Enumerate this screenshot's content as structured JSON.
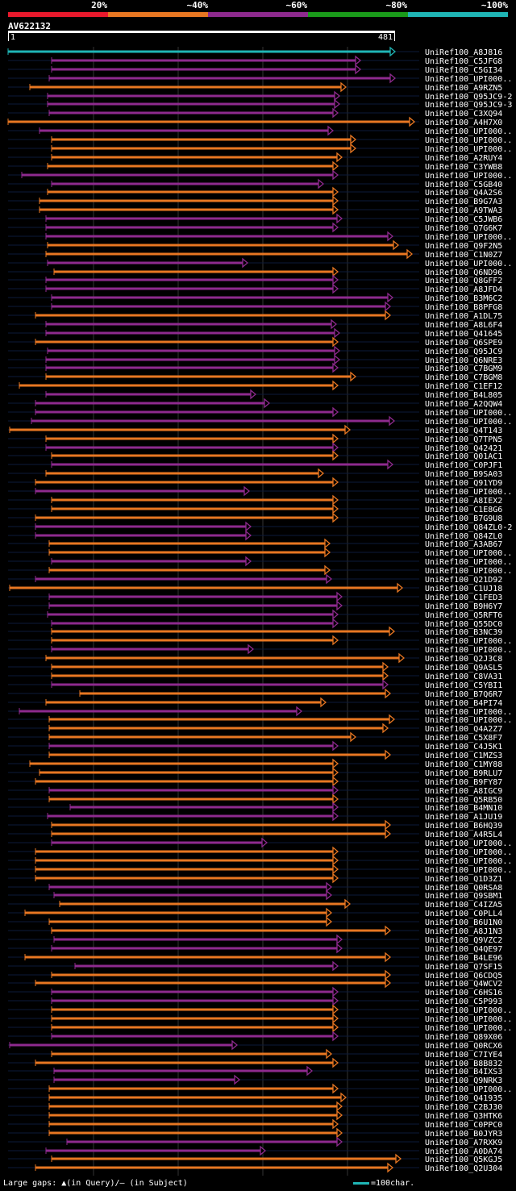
{
  "legend": {
    "items": [
      {
        "label": "20%",
        "color": "#e8192c"
      },
      {
        "label": "~40%",
        "color": "#e87722"
      },
      {
        "label": "~60%",
        "color": "#8e2a8e"
      },
      {
        "label": "~80%",
        "color": "#1a9a1a"
      },
      {
        "label": "~100%",
        "color": "#1fb5b5"
      }
    ]
  },
  "query": {
    "name": "AV622132",
    "start": "1",
    "end": "481"
  },
  "colors": {
    "orange": "#e87722",
    "purple": "#8e2a8e",
    "teal": "#1fb5b5",
    "insert": "#ffe680",
    "grid": "#333333"
  },
  "hits": [
    {
      "name": "UniRef100_A8J816",
      "start": 1,
      "end": 481,
      "color": "teal"
    },
    {
      "name": "UniRef100_C5JFG8",
      "start": 55,
      "end": 438,
      "color": "purple"
    },
    {
      "name": "UniRef100_C5GI34",
      "start": 55,
      "end": 438,
      "color": "purple"
    },
    {
      "name": "UniRef100_UPI000..",
      "start": 52,
      "end": 481,
      "color": "purple"
    },
    {
      "name": "UniRef100_A9RZN5",
      "start": 28,
      "end": 420,
      "color": "orange"
    },
    {
      "name": "UniRef100_Q95JC9-2",
      "start": 50,
      "end": 412,
      "color": "purple"
    },
    {
      "name": "UniRef100_Q95JC9-3",
      "start": 50,
      "end": 412,
      "color": "purple"
    },
    {
      "name": "UniRef100_C3XQ94",
      "start": 52,
      "end": 410,
      "color": "purple"
    },
    {
      "name": "UniRef100_A4H7X0",
      "start": 1,
      "end": 505,
      "color": "orange"
    },
    {
      "name": "UniRef100_UPI000..",
      "start": 40,
      "end": 404,
      "color": "purple"
    },
    {
      "name": "UniRef100_UPI000..",
      "start": 55,
      "end": 432,
      "color": "orange"
    },
    {
      "name": "UniRef100_UPI000..",
      "start": 55,
      "end": 432,
      "color": "orange"
    },
    {
      "name": "UniRef100_A2RUY4",
      "start": 55,
      "end": 415,
      "color": "orange"
    },
    {
      "name": "UniRef100_C3YWB8",
      "start": 50,
      "end": 410,
      "color": "orange"
    },
    {
      "name": "UniRef100_UPI000..",
      "start": 18,
      "end": 410,
      "color": "purple"
    },
    {
      "name": "UniRef100_C5GB40",
      "start": 55,
      "end": 392,
      "color": "purple"
    },
    {
      "name": "UniRef100_Q4A2S6",
      "start": 50,
      "end": 410,
      "color": "orange"
    },
    {
      "name": "UniRef100_B9G7A3",
      "start": 40,
      "end": 410,
      "color": "orange"
    },
    {
      "name": "UniRef100_A9TWA3",
      "start": 40,
      "end": 410,
      "color": "orange"
    },
    {
      "name": "UniRef100_C5JWB6",
      "start": 48,
      "end": 415,
      "color": "purple"
    },
    {
      "name": "UniRef100_Q7G6K7",
      "start": 48,
      "end": 410,
      "color": "purple"
    },
    {
      "name": "UniRef100_UPI000..",
      "start": 48,
      "end": 478,
      "color": "purple"
    },
    {
      "name": "UniRef100_Q9F2N5",
      "start": 50,
      "end": 485,
      "color": "orange"
    },
    {
      "name": "UniRef100_C1N0Z7",
      "start": 48,
      "end": 502,
      "color": "orange"
    },
    {
      "name": "UniRef100_UPI000..",
      "start": 50,
      "end": 298,
      "color": "purple"
    },
    {
      "name": "UniRef100_Q6ND96",
      "start": 58,
      "end": 410,
      "color": "orange"
    },
    {
      "name": "UniRef100_Q8GFF2",
      "start": 48,
      "end": 410,
      "color": "purple"
    },
    {
      "name": "UniRef100_A8JFD4",
      "start": 48,
      "end": 410,
      "color": "purple"
    },
    {
      "name": "UniRef100_B3M6C2",
      "start": 55,
      "end": 478,
      "color": "purple"
    },
    {
      "name": "UniRef100_B8PFG8",
      "start": 55,
      "end": 475,
      "color": "purple"
    },
    {
      "name": "UniRef100_A1DL75",
      "start": 35,
      "end": 475,
      "color": "orange"
    },
    {
      "name": "UniRef100_A8L6F4",
      "start": 48,
      "end": 408,
      "color": "purple"
    },
    {
      "name": "UniRef100_Q41645",
      "start": 48,
      "end": 412,
      "color": "purple"
    },
    {
      "name": "UniRef100_Q6SPE9",
      "start": 35,
      "end": 410,
      "color": "orange"
    },
    {
      "name": "UniRef100_Q95JC9",
      "start": 50,
      "end": 412,
      "color": "purple"
    },
    {
      "name": "UniRef100_Q6NRE3",
      "start": 48,
      "end": 412,
      "color": "purple"
    },
    {
      "name": "UniRef100_C7BGM9",
      "start": 48,
      "end": 410,
      "color": "purple"
    },
    {
      "name": "UniRef100_C7BGM8",
      "start": 48,
      "end": 432,
      "color": "orange"
    },
    {
      "name": "UniRef100_C1EF12",
      "start": 15,
      "end": 410,
      "color": "orange"
    },
    {
      "name": "UniRef100_B4L805",
      "start": 48,
      "end": 308,
      "color": "purple"
    },
    {
      "name": "UniRef100_A2QQW4",
      "start": 35,
      "end": 325,
      "color": "purple"
    },
    {
      "name": "UniRef100_UPI000..",
      "start": 35,
      "end": 410,
      "color": "purple"
    },
    {
      "name": "UniRef100_UPI000..",
      "start": 30,
      "end": 480,
      "color": "purple"
    },
    {
      "name": "UniRef100_Q4T143",
      "start": 3,
      "end": 425,
      "color": "orange"
    },
    {
      "name": "UniRef100_Q7TPN5",
      "start": 48,
      "end": 410,
      "color": "orange"
    },
    {
      "name": "UniRef100_Q42421",
      "start": 48,
      "end": 410,
      "color": "purple"
    },
    {
      "name": "UniRef100_Q01AC1",
      "start": 55,
      "end": 410,
      "color": "orange"
    },
    {
      "name": "UniRef100_C0PJF1",
      "start": 55,
      "end": 478,
      "color": "purple"
    },
    {
      "name": "UniRef100_B9SA03",
      "start": 48,
      "end": 392,
      "color": "orange"
    },
    {
      "name": "UniRef100_Q91YD9",
      "start": 35,
      "end": 410,
      "color": "orange"
    },
    {
      "name": "UniRef100_UPI000..",
      "start": 35,
      "end": 300,
      "color": "purple"
    },
    {
      "name": "UniRef100_A8IEX2",
      "start": 55,
      "end": 410,
      "color": "orange"
    },
    {
      "name": "UniRef100_C1E8G6",
      "start": 55,
      "end": 410,
      "color": "orange"
    },
    {
      "name": "UniRef100_B7G9U8",
      "start": 35,
      "end": 410,
      "color": "orange"
    },
    {
      "name": "UniRef100_Q84ZL0-2",
      "start": 35,
      "end": 302,
      "color": "purple"
    },
    {
      "name": "UniRef100_Q84ZL0",
      "start": 35,
      "end": 302,
      "color": "purple"
    },
    {
      "name": "UniRef100_A3AB67",
      "start": 52,
      "end": 400,
      "color": "orange"
    },
    {
      "name": "UniRef100_UPI000..",
      "start": 52,
      "end": 400,
      "color": "orange"
    },
    {
      "name": "UniRef100_UPI000..",
      "start": 55,
      "end": 302,
      "color": "purple"
    },
    {
      "name": "UniRef100_UPI000..",
      "start": 52,
      "end": 400,
      "color": "orange"
    },
    {
      "name": "UniRef100_Q21D92",
      "start": 35,
      "end": 402,
      "color": "purple"
    },
    {
      "name": "UniRef100_C1UJ18",
      "start": 3,
      "end": 490,
      "color": "orange"
    },
    {
      "name": "UniRef100_C1FED3",
      "start": 52,
      "end": 415,
      "color": "purple"
    },
    {
      "name": "UniRef100_B9H6Y7",
      "start": 52,
      "end": 415,
      "color": "purple"
    },
    {
      "name": "UniRef100_Q5RFT6",
      "start": 50,
      "end": 410,
      "color": "purple"
    },
    {
      "name": "UniRef100_Q55DC0",
      "start": 55,
      "end": 410,
      "color": "purple"
    },
    {
      "name": "UniRef100_B3NC39",
      "start": 55,
      "end": 480,
      "color": "orange"
    },
    {
      "name": "UniRef100_UPI000..",
      "start": 55,
      "end": 410,
      "color": "orange"
    },
    {
      "name": "UniRef100_UPI000..",
      "start": 55,
      "end": 305,
      "color": "purple"
    },
    {
      "name": "UniRef100_Q2J3C8",
      "start": 48,
      "end": 492,
      "color": "orange"
    },
    {
      "name": "UniRef100_Q9ASL5",
      "start": 55,
      "end": 472,
      "color": "orange"
    },
    {
      "name": "UniRef100_C8VA31",
      "start": 55,
      "end": 472,
      "color": "orange"
    },
    {
      "name": "UniRef100_C5YBI1",
      "start": 55,
      "end": 472,
      "color": "purple"
    },
    {
      "name": "UniRef100_B7Q6R7",
      "start": 90,
      "end": 475,
      "color": "orange"
    },
    {
      "name": "UniRef100_B4PI74",
      "start": 48,
      "end": 395,
      "color": "orange"
    },
    {
      "name": "UniRef100_UPI000..",
      "start": 15,
      "end": 365,
      "color": "purple"
    },
    {
      "name": "UniRef100_UPI000..",
      "start": 52,
      "end": 480,
      "color": "orange"
    },
    {
      "name": "UniRef100_Q4A2Z7",
      "start": 52,
      "end": 472,
      "color": "orange"
    },
    {
      "name": "UniRef100_C5X8F7",
      "start": 52,
      "end": 432,
      "color": "orange"
    },
    {
      "name": "UniRef100_C4J5K1",
      "start": 52,
      "end": 410,
      "color": "purple"
    },
    {
      "name": "UniRef100_C1MZS3",
      "start": 52,
      "end": 475,
      "color": "orange"
    },
    {
      "name": "UniRef100_C1MY88",
      "start": 28,
      "end": 410,
      "color": "orange"
    },
    {
      "name": "UniRef100_B9RLU7",
      "start": 40,
      "end": 410,
      "color": "orange"
    },
    {
      "name": "UniRef100_B9FY87",
      "start": 35,
      "end": 410,
      "color": "orange"
    },
    {
      "name": "UniRef100_A8IGC9",
      "start": 52,
      "end": 410,
      "color": "purple"
    },
    {
      "name": "UniRef100_Q5RB50",
      "start": 52,
      "end": 410,
      "color": "orange"
    },
    {
      "name": "UniRef100_B4MN10",
      "start": 78,
      "end": 410,
      "color": "purple"
    },
    {
      "name": "UniRef100_A1JU19",
      "start": 50,
      "end": 410,
      "color": "purple"
    },
    {
      "name": "UniRef100_B6HQ39",
      "start": 55,
      "end": 475,
      "color": "orange"
    },
    {
      "name": "UniRef100_A4R5L4",
      "start": 55,
      "end": 475,
      "color": "orange"
    },
    {
      "name": "UniRef100_UPI000..",
      "start": 55,
      "end": 322,
      "color": "purple"
    },
    {
      "name": "UniRef100_UPI000..",
      "start": 35,
      "end": 410,
      "color": "orange"
    },
    {
      "name": "UniRef100_UPI000..",
      "start": 35,
      "end": 410,
      "color": "orange"
    },
    {
      "name": "UniRef100_UPI000..",
      "start": 35,
      "end": 410,
      "color": "orange"
    },
    {
      "name": "UniRef100_Q1D3Z1",
      "start": 35,
      "end": 410,
      "color": "orange"
    },
    {
      "name": "UniRef100_Q0RSA8",
      "start": 52,
      "end": 402,
      "color": "purple"
    },
    {
      "name": "UniRef100_Q9SBM1",
      "start": 58,
      "end": 402,
      "color": "purple"
    },
    {
      "name": "UniRef100_C4IZA5",
      "start": 65,
      "end": 425,
      "color": "orange"
    },
    {
      "name": "UniRef100_C0PLL4",
      "start": 22,
      "end": 402,
      "color": "orange"
    },
    {
      "name": "UniRef100_B6U1N0",
      "start": 52,
      "end": 402,
      "color": "orange"
    },
    {
      "name": "UniRef100_A8J1N3",
      "start": 55,
      "end": 475,
      "color": "orange"
    },
    {
      "name": "UniRef100_Q9VZC2",
      "start": 58,
      "end": 415,
      "color": "purple"
    },
    {
      "name": "UniRef100_Q4QE97",
      "start": 55,
      "end": 415,
      "color": "purple"
    },
    {
      "name": "UniRef100_B4LE96",
      "start": 22,
      "end": 475,
      "color": "orange"
    },
    {
      "name": "UniRef100_Q7SF15",
      "start": 84,
      "end": 410,
      "color": "purple"
    },
    {
      "name": "UniRef100_Q6CDQ5",
      "start": 55,
      "end": 475,
      "color": "orange"
    },
    {
      "name": "UniRef100_Q4WCV2",
      "start": 35,
      "end": 475,
      "color": "orange"
    },
    {
      "name": "UniRef100_C6HS16",
      "start": 55,
      "end": 410,
      "color": "purple"
    },
    {
      "name": "UniRef100_C5P993",
      "start": 55,
      "end": 410,
      "color": "purple"
    },
    {
      "name": "UniRef100_UPI000..",
      "start": 55,
      "end": 410,
      "color": "orange"
    },
    {
      "name": "UniRef100_UPI000..",
      "start": 55,
      "end": 410,
      "color": "orange"
    },
    {
      "name": "UniRef100_UPI000..",
      "start": 55,
      "end": 410,
      "color": "orange"
    },
    {
      "name": "UniRef100_Q89X06",
      "start": 55,
      "end": 410,
      "color": "purple"
    },
    {
      "name": "UniRef100_Q0RCX6",
      "start": 3,
      "end": 285,
      "color": "purple"
    },
    {
      "name": "UniRef100_C7IYE4",
      "start": 55,
      "end": 402,
      "color": "orange"
    },
    {
      "name": "UniRef100_B8B832",
      "start": 35,
      "end": 410,
      "color": "orange"
    },
    {
      "name": "UniRef100_B4IXS3",
      "start": 58,
      "end": 378,
      "color": "purple"
    },
    {
      "name": "UniRef100_Q9NRK3",
      "start": 58,
      "end": 288,
      "color": "purple"
    },
    {
      "name": "UniRef100_UPI000..",
      "start": 52,
      "end": 410,
      "color": "orange"
    },
    {
      "name": "UniRef100_Q41935",
      "start": 52,
      "end": 420,
      "color": "orange"
    },
    {
      "name": "UniRef100_C2BJ30",
      "start": 52,
      "end": 415,
      "color": "orange"
    },
    {
      "name": "UniRef100_Q3HTK6",
      "start": 52,
      "end": 415,
      "color": "orange"
    },
    {
      "name": "UniRef100_C0PPC0",
      "start": 52,
      "end": 410,
      "color": "orange"
    },
    {
      "name": "UniRef100_B0JYR3",
      "start": 52,
      "end": 415,
      "color": "orange"
    },
    {
      "name": "UniRef100_A7RXK9",
      "start": 74,
      "end": 415,
      "color": "purple"
    },
    {
      "name": "UniRef100_A0DA74",
      "start": 48,
      "end": 320,
      "color": "purple"
    },
    {
      "name": "UniRef100_Q5KGJ5",
      "start": 55,
      "end": 488,
      "color": "orange"
    },
    {
      "name": "UniRef100_Q2U304",
      "start": 35,
      "end": 478,
      "color": "orange"
    }
  ],
  "footer": {
    "note": "Large gaps: ▲(in Query)/– (in Subject)",
    "scale": "=100char."
  }
}
